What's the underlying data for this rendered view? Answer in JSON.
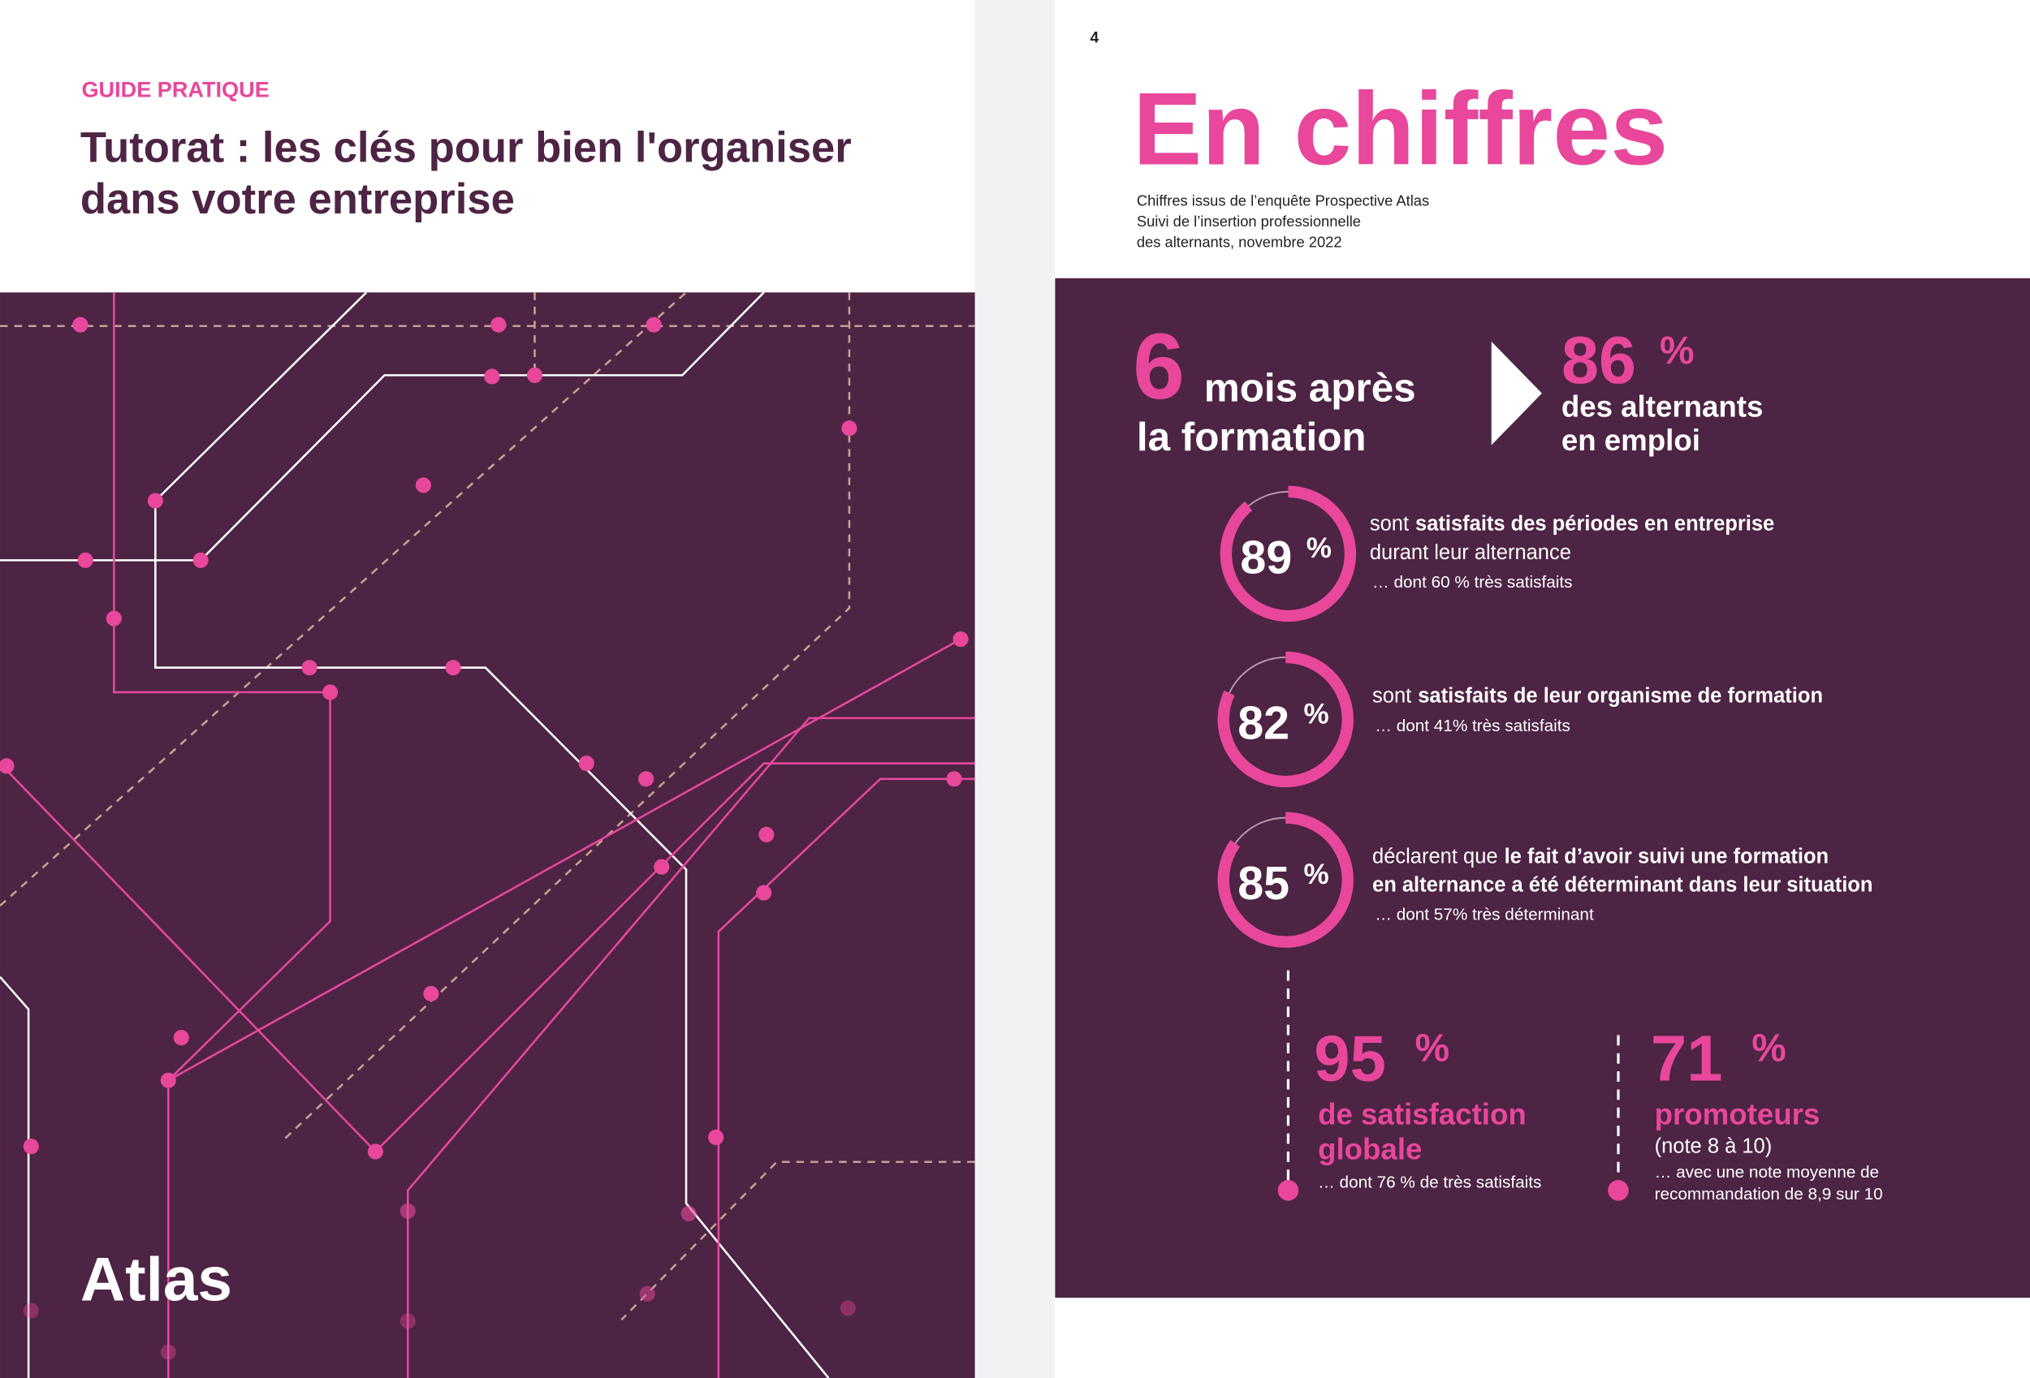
{
  "left_page": {
    "eyebrow": "GUIDE PRATIQUE",
    "title_lines": [
      "Tutorat : les clés pour bien l'organiser",
      "dans votre entreprise"
    ],
    "logo": "Atlas"
  },
  "right_page": {
    "page_number": "4",
    "title": "En chiffres",
    "source_lines": [
      "Chiffres issus de l’enquête Prospective Atlas",
      "Suivi de l’insertion professionnelle",
      "des alternants, novembre 2022"
    ],
    "headline": {
      "number": "6",
      "lines": [
        "mois après",
        "la formation"
      ],
      "stat_value": "86",
      "unit": "%",
      "stat_lines": [
        "des alternants",
        "en emploi"
      ]
    },
    "rings": [
      {
        "value": 89,
        "unit": "%",
        "lines": [
          [
            {
              "text": "sont",
              "bold": false
            },
            {
              "text": "satisfaits des périodes en entreprise",
              "bold": true
            }
          ],
          [
            {
              "text": "durant leur alternance",
              "bold": false
            }
          ]
        ],
        "note": "… dont 60 % très satisfaits"
      },
      {
        "value": 82,
        "unit": "%",
        "lines": [
          [
            {
              "text": "sont",
              "bold": false
            },
            {
              "text": "satisfaits de leur organisme de formation",
              "bold": true
            }
          ]
        ],
        "note": "… dont 41% très satisfaits"
      },
      {
        "value": 85,
        "unit": "%",
        "lines": [
          [
            {
              "text": "déclarent que",
              "bold": false
            },
            {
              "text": "le fait d’avoir suivi une formation",
              "bold": true
            }
          ],
          [
            {
              "text": "en alternance a été déterminant dans leur situation",
              "bold": true
            }
          ]
        ],
        "note": "… dont 57% très déterminant"
      }
    ],
    "bottom_stats": [
      {
        "value": "95",
        "unit": "%",
        "label_lines": [
          "de satisfaction",
          "globale"
        ],
        "notes": [
          "… dont 76 % de très satisfaits"
        ]
      },
      {
        "value": "71",
        "unit": "%",
        "label_lines": [
          "promoteurs"
        ],
        "notes": [
          "(note 8 à 10)",
          "… avec une note moyenne de",
          "recommandation de 8,9 sur 10"
        ]
      }
    ]
  }
}
